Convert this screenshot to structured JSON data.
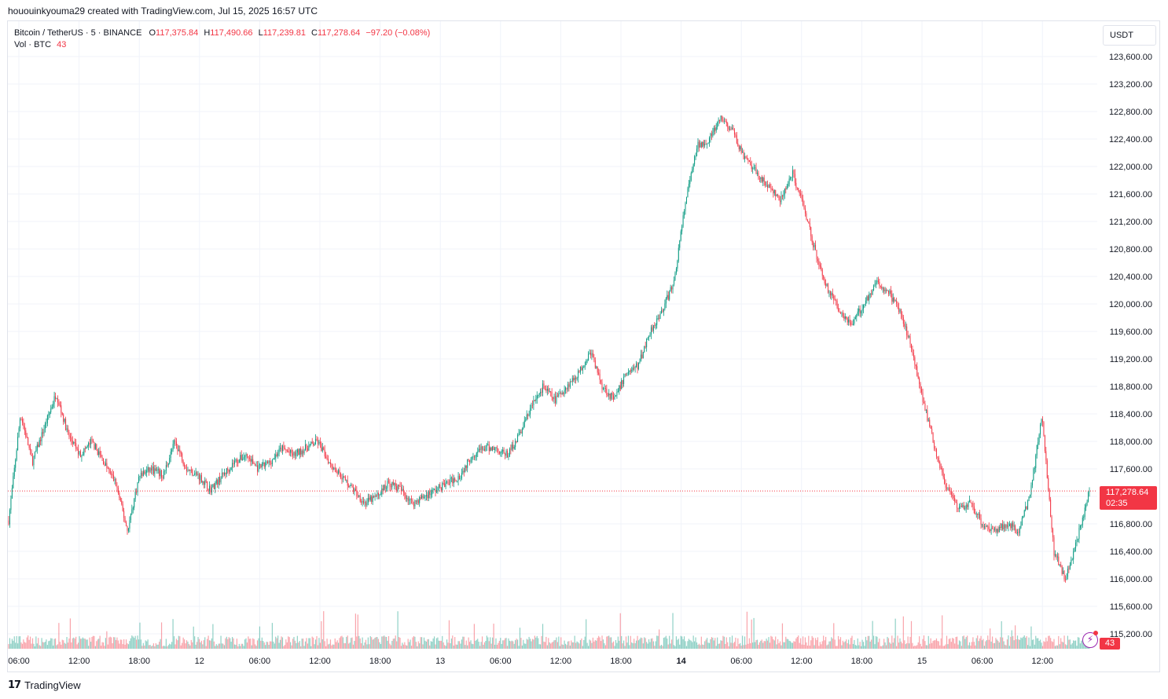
{
  "credit": "hououinkyouma29 created with TradingView.com, Jul 15, 2025 16:57 UTC",
  "legend": {
    "symbol": "Bitcoin / TetherUS · 5 · BINANCE",
    "o_label": "O",
    "o_value": "117,375.84",
    "h_label": "H",
    "h_value": "117,490.66",
    "l_label": "L",
    "l_value": "117,239.81",
    "c_label": "C",
    "c_value": "117,278.64",
    "change": "−97.20 (−0.08%)",
    "vol_label": "Vol · BTC",
    "vol_value": "43"
  },
  "currency": "USDT",
  "price_tag": {
    "price": "117,278.64",
    "countdown": "02:35"
  },
  "vol_tag": "43",
  "brand": "TradingView",
  "colors": {
    "up": "#089981",
    "down": "#f23645",
    "grid": "#f0f3fa",
    "text": "#131722"
  },
  "icons": {
    "flash": "lightning-icon",
    "logo": "tradingview-logo-icon"
  },
  "chart_data": {
    "type": "candlestick",
    "symbol": "Bitcoin / TetherUS",
    "interval": "5",
    "exchange": "BINANCE",
    "y_axis": {
      "ticks": [
        115200,
        115600,
        116000,
        116400,
        116800,
        117200,
        117600,
        118000,
        118400,
        118800,
        119200,
        119600,
        120000,
        120400,
        120800,
        121200,
        121600,
        122000,
        122400,
        122800,
        123200,
        123600
      ],
      "tick_labels": [
        "115,200.00",
        "115,600.00",
        "116,000.00",
        "116,400.00",
        "116,800.00",
        "117,200.00",
        "117,600.00",
        "118,000.00",
        "118,400.00",
        "118,800.00",
        "119,200.00",
        "119,600.00",
        "120,000.00",
        "120,400.00",
        "120,800.00",
        "121,200.00",
        "121,600.00",
        "122,000.00",
        "122,400.00",
        "122,800.00",
        "123,200.00",
        "123,600.00"
      ],
      "range": [
        115000,
        123800
      ]
    },
    "x_axis": {
      "tick_labels": [
        "06:00",
        "12:00",
        "18:00",
        "12",
        "06:00",
        "12:00",
        "18:00",
        "13",
        "06:00",
        "12:00",
        "18:00",
        "14",
        "06:00",
        "12:00",
        "18:00",
        "15",
        "06:00",
        "12:00"
      ],
      "bold": [
        false,
        false,
        false,
        false,
        false,
        false,
        false,
        false,
        false,
        false,
        false,
        true,
        false,
        false,
        false,
        false,
        false,
        false
      ]
    },
    "last_price": 117278.64,
    "price_path": [
      [
        0,
        116850
      ],
      [
        1,
        118400
      ],
      [
        2,
        117700
      ],
      [
        3,
        118200
      ],
      [
        4,
        118700
      ],
      [
        5,
        118100
      ],
      [
        6,
        117800
      ],
      [
        7,
        118000
      ],
      [
        8,
        117700
      ],
      [
        9,
        117400
      ],
      [
        10,
        116700
      ],
      [
        11,
        117500
      ],
      [
        12,
        117600
      ],
      [
        13,
        117500
      ],
      [
        14,
        118000
      ],
      [
        15,
        117600
      ],
      [
        16,
        117500
      ],
      [
        17,
        117300
      ],
      [
        18,
        117500
      ],
      [
        19,
        117700
      ],
      [
        20,
        117800
      ],
      [
        21,
        117600
      ],
      [
        22,
        117700
      ],
      [
        23,
        117900
      ],
      [
        24,
        117800
      ],
      [
        25,
        117900
      ],
      [
        26,
        118000
      ],
      [
        27,
        117700
      ],
      [
        28,
        117500
      ],
      [
        29,
        117300
      ],
      [
        30,
        117100
      ],
      [
        31,
        117200
      ],
      [
        32,
        117400
      ],
      [
        33,
        117300
      ],
      [
        34,
        117100
      ],
      [
        35,
        117200
      ],
      [
        36,
        117300
      ],
      [
        37,
        117400
      ],
      [
        38,
        117500
      ],
      [
        39,
        117800
      ],
      [
        40,
        117900
      ],
      [
        41,
        117900
      ],
      [
        42,
        117800
      ],
      [
        43,
        118100
      ],
      [
        44,
        118500
      ],
      [
        45,
        118800
      ],
      [
        46,
        118600
      ],
      [
        47,
        118800
      ],
      [
        48,
        119000
      ],
      [
        49,
        119300
      ],
      [
        50,
        118800
      ],
      [
        51,
        118600
      ],
      [
        52,
        119000
      ],
      [
        53,
        119100
      ],
      [
        54,
        119600
      ],
      [
        55,
        119900
      ],
      [
        56,
        120300
      ],
      [
        57,
        121500
      ],
      [
        58,
        122300
      ],
      [
        59,
        122400
      ],
      [
        60,
        122700
      ],
      [
        61,
        122500
      ],
      [
        62,
        122100
      ],
      [
        63,
        121900
      ],
      [
        64,
        121700
      ],
      [
        65,
        121500
      ],
      [
        66,
        121900
      ],
      [
        67,
        121400
      ],
      [
        68,
        120700
      ],
      [
        69,
        120200
      ],
      [
        70,
        119900
      ],
      [
        71,
        119700
      ],
      [
        72,
        120000
      ],
      [
        73,
        120300
      ],
      [
        74,
        120200
      ],
      [
        75,
        119900
      ],
      [
        76,
        119400
      ],
      [
        77,
        118600
      ],
      [
        78,
        117900
      ],
      [
        79,
        117300
      ],
      [
        80,
        117000
      ],
      [
        81,
        117100
      ],
      [
        82,
        116800
      ],
      [
        83,
        116700
      ],
      [
        84,
        116800
      ],
      [
        85,
        116700
      ],
      [
        86,
        117200
      ],
      [
        87,
        118400
      ],
      [
        88,
        116400
      ],
      [
        89,
        116000
      ],
      [
        90,
        116600
      ],
      [
        91,
        117278.64
      ]
    ],
    "path_x_range": [
      0,
      91
    ],
    "volume": {
      "unit": "BTC",
      "last": 43
    }
  }
}
